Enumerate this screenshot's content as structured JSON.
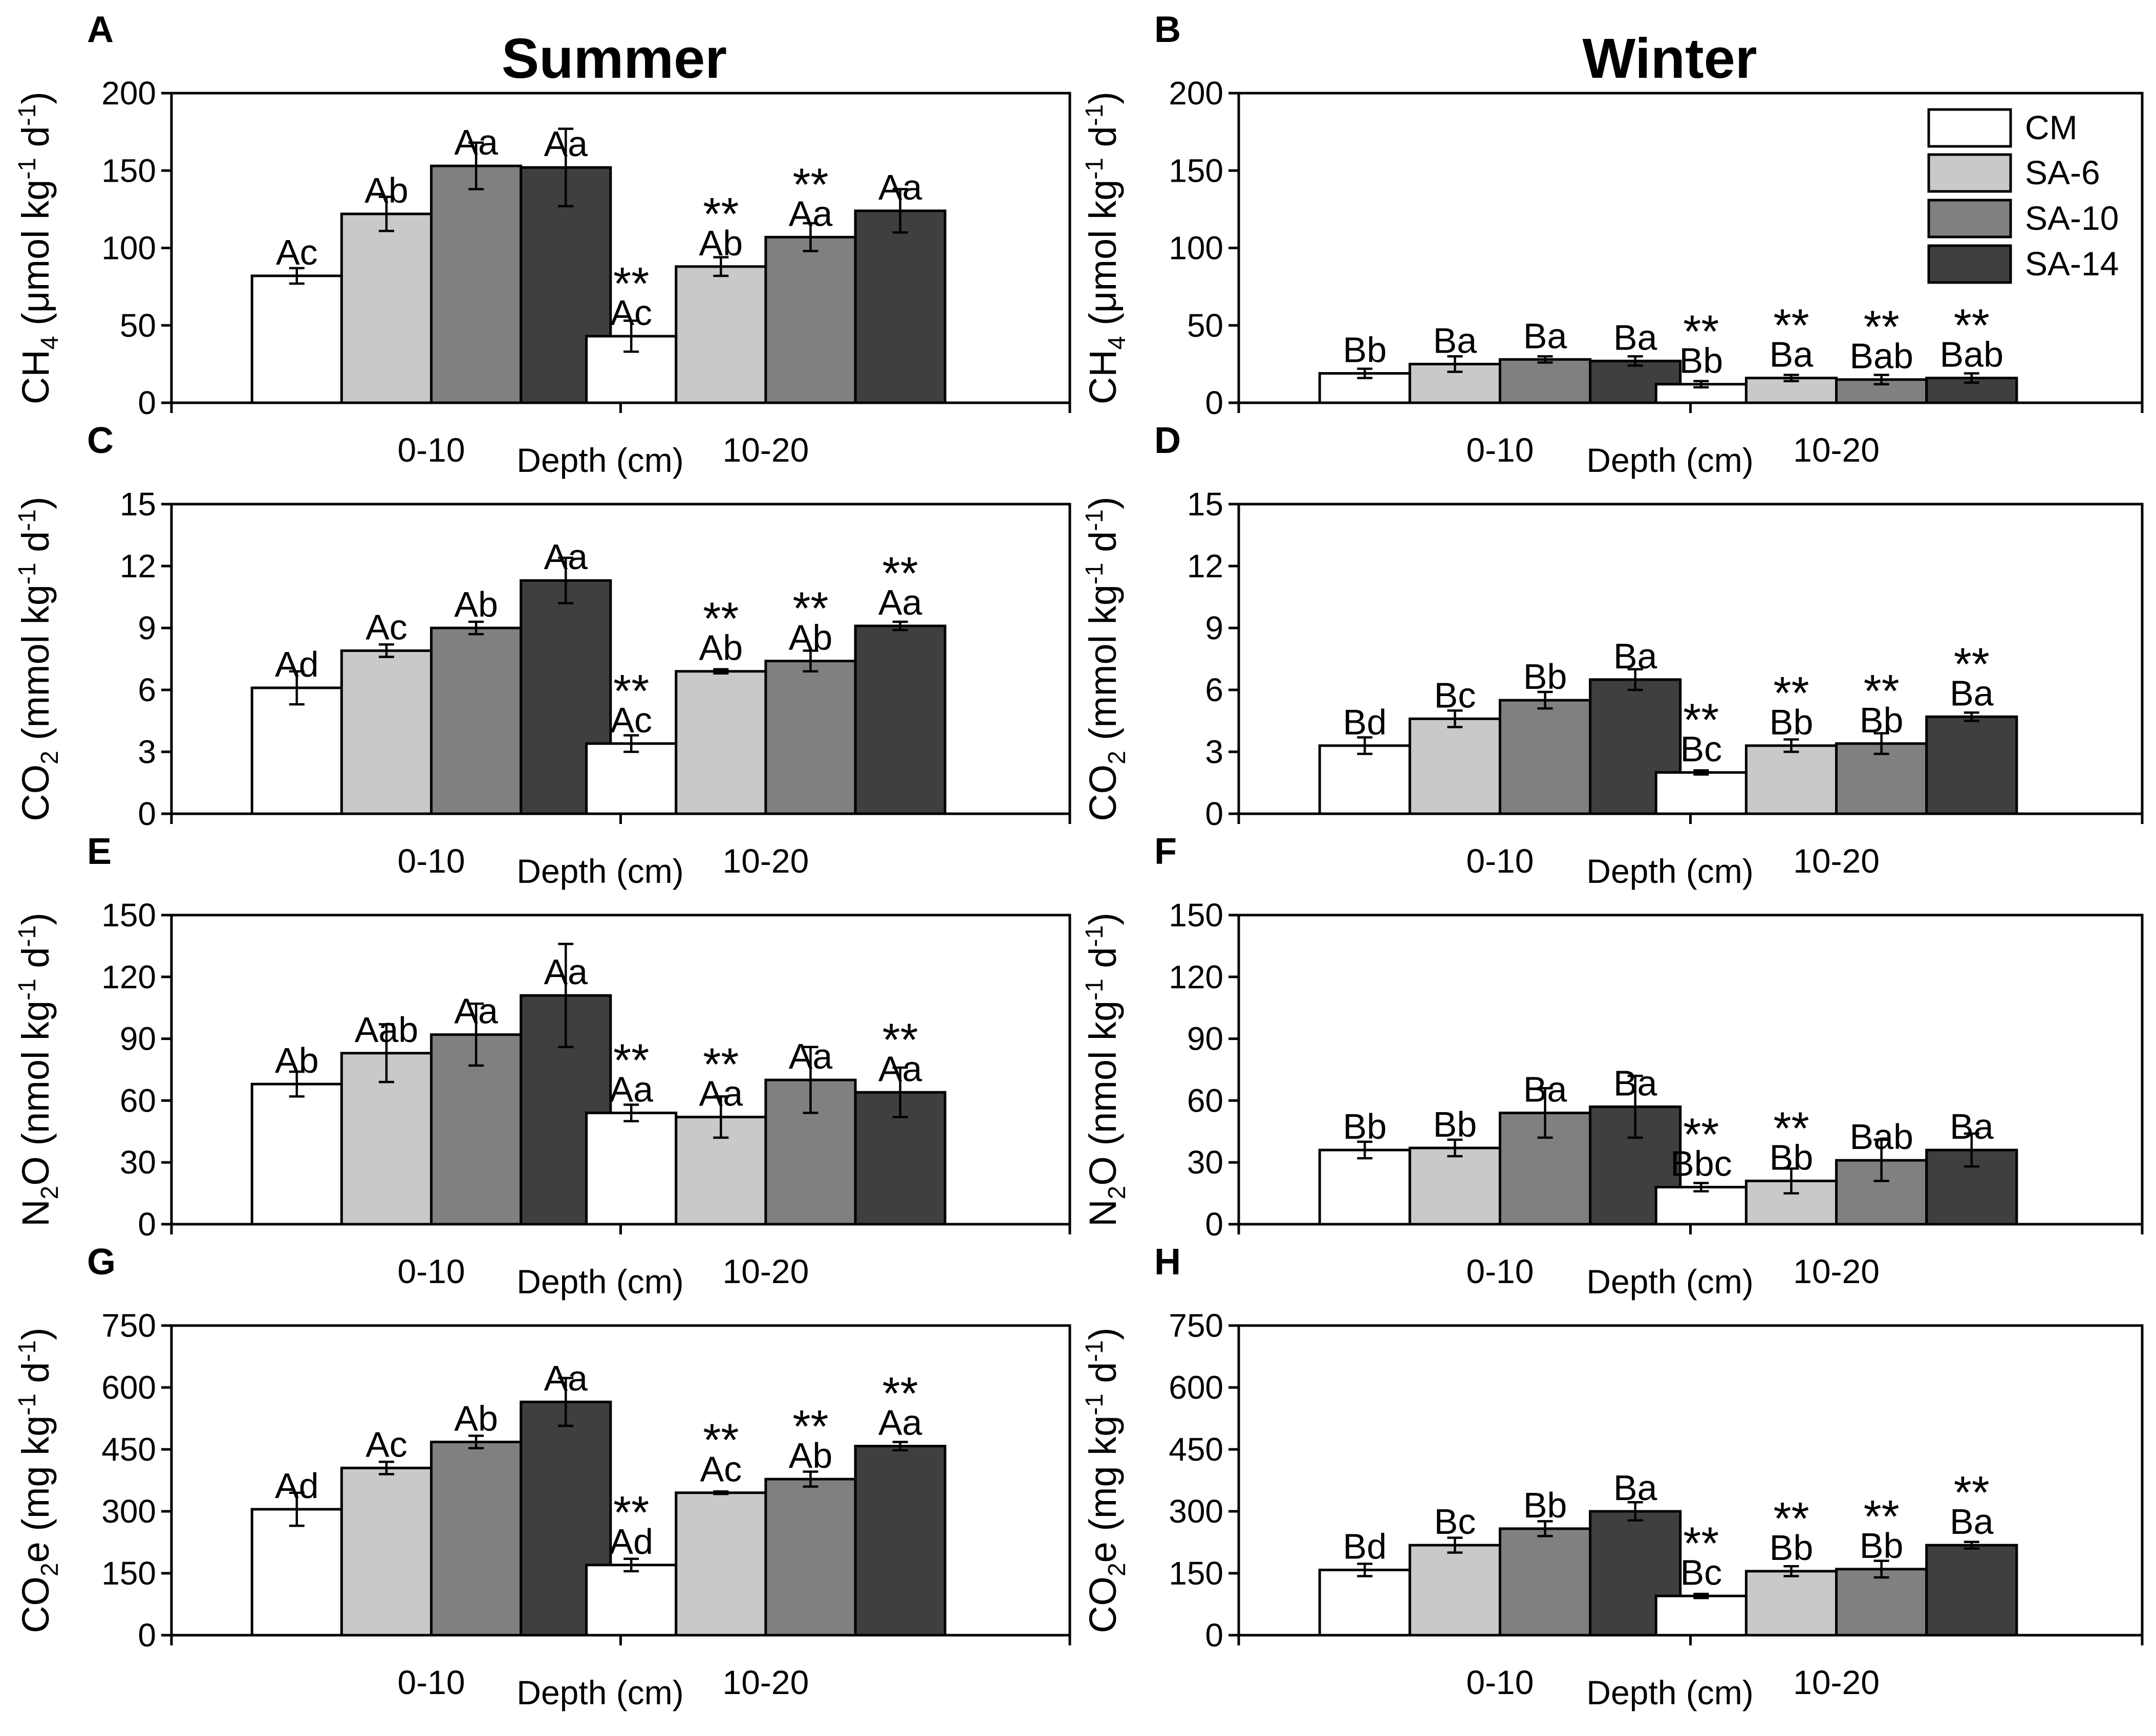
{
  "colors": {
    "series": [
      "#ffffff",
      "#c9c9c9",
      "#808080",
      "#3f3f3f"
    ]
  },
  "column_titles": [
    "Summer",
    "Winter"
  ],
  "legend": {
    "entries": [
      "CM",
      "SA-6",
      "SA-10",
      "SA-14"
    ]
  },
  "chart_data": [
    {
      "type": "bar",
      "panel": "A",
      "season": "Summer",
      "categories": [
        "0-10",
        "10-20"
      ],
      "xlabel": "Depth (cm)",
      "ylabel": {
        "pre": "CH",
        "sub": "4",
        "mid": " (μmol kg",
        "sup1": "-1",
        "gap": " d",
        "sup2": "-1",
        "post": ")"
      },
      "ylim": [
        0,
        200
      ],
      "yticks": [
        0,
        50,
        100,
        150,
        200
      ],
      "series": [
        {
          "name": "CM",
          "values": [
            82,
            43
          ],
          "errors": [
            5,
            10
          ],
          "labels": [
            "Ac",
            "Ac"
          ],
          "stars": [
            "",
            "**"
          ]
        },
        {
          "name": "SA-6",
          "values": [
            122,
            88
          ],
          "errors": [
            11,
            6
          ],
          "labels": [
            "Ab",
            "Ab"
          ],
          "stars": [
            "",
            "**"
          ]
        },
        {
          "name": "SA-10",
          "values": [
            153,
            107
          ],
          "errors": [
            15,
            9
          ],
          "labels": [
            "Aa",
            "Aa"
          ],
          "stars": [
            "",
            "**"
          ]
        },
        {
          "name": "SA-14",
          "values": [
            152,
            124
          ],
          "errors": [
            25,
            14
          ],
          "labels": [
            "Aa",
            "Aa"
          ],
          "stars": [
            "",
            ""
          ]
        }
      ]
    },
    {
      "type": "bar",
      "panel": "B",
      "season": "Winter",
      "categories": [
        "0-10",
        "10-20"
      ],
      "xlabel": "Depth (cm)",
      "ylabel": {
        "pre": "CH",
        "sub": "4",
        "mid": " (μmol kg",
        "sup1": "-1",
        "gap": " d",
        "sup2": "-1",
        "post": ")"
      },
      "ylim": [
        0,
        200
      ],
      "yticks": [
        0,
        50,
        100,
        150,
        200
      ],
      "series": [
        {
          "name": "CM",
          "values": [
            19,
            12
          ],
          "errors": [
            3,
            2
          ],
          "labels": [
            "Bb",
            "Bb"
          ],
          "stars": [
            "",
            "**"
          ]
        },
        {
          "name": "SA-6",
          "values": [
            25,
            16
          ],
          "errors": [
            5,
            2
          ],
          "labels": [
            "Ba",
            "Ba"
          ],
          "stars": [
            "",
            "**"
          ]
        },
        {
          "name": "SA-10",
          "values": [
            28,
            15
          ],
          "errors": [
            2,
            3
          ],
          "labels": [
            "Ba",
            "Bab"
          ],
          "stars": [
            "",
            "**"
          ]
        },
        {
          "name": "SA-14",
          "values": [
            27,
            16
          ],
          "errors": [
            3,
            3
          ],
          "labels": [
            "Ba",
            "Bab"
          ],
          "stars": [
            "",
            "**"
          ]
        }
      ]
    },
    {
      "type": "bar",
      "panel": "C",
      "season": "Summer",
      "categories": [
        "0-10",
        "10-20"
      ],
      "xlabel": "Depth (cm)",
      "ylabel": {
        "pre": "CO",
        "sub": "2",
        "mid": " (mmol kg",
        "sup1": "-1",
        "gap": " d",
        "sup2": "-1",
        "post": ")"
      },
      "ylim": [
        0,
        15
      ],
      "yticks": [
        0,
        3,
        6,
        9,
        12,
        15
      ],
      "series": [
        {
          "name": "CM",
          "values": [
            6.1,
            3.4
          ],
          "errors": [
            0.8,
            0.4
          ],
          "labels": [
            "Ad",
            "Ac"
          ],
          "stars": [
            "",
            "**"
          ]
        },
        {
          "name": "SA-6",
          "values": [
            7.9,
            6.9
          ],
          "errors": [
            0.3,
            0.1
          ],
          "labels": [
            "Ac",
            "Ab"
          ],
          "stars": [
            "",
            "**"
          ]
        },
        {
          "name": "SA-10",
          "values": [
            9.0,
            7.4
          ],
          "errors": [
            0.3,
            0.5
          ],
          "labels": [
            "Ab",
            "Ab"
          ],
          "stars": [
            "",
            "**"
          ]
        },
        {
          "name": "SA-14",
          "values": [
            11.3,
            9.1
          ],
          "errors": [
            1.1,
            0.2
          ],
          "labels": [
            "Aa",
            "Aa"
          ],
          "stars": [
            "",
            "**"
          ]
        }
      ]
    },
    {
      "type": "bar",
      "panel": "D",
      "season": "Winter",
      "categories": [
        "0-10",
        "10-20"
      ],
      "xlabel": "Depth (cm)",
      "ylabel": {
        "pre": "CO",
        "sub": "2",
        "mid": " (mmol kg",
        "sup1": "-1",
        "gap": " d",
        "sup2": "-1",
        "post": ")"
      },
      "ylim": [
        0,
        15
      ],
      "yticks": [
        0,
        3,
        6,
        9,
        12,
        15
      ],
      "series": [
        {
          "name": "CM",
          "values": [
            3.3,
            2.0
          ],
          "errors": [
            0.4,
            0.1
          ],
          "labels": [
            "Bd",
            "Bc"
          ],
          "stars": [
            "",
            "**"
          ]
        },
        {
          "name": "SA-6",
          "values": [
            4.6,
            3.3
          ],
          "errors": [
            0.4,
            0.3
          ],
          "labels": [
            "Bc",
            "Bb"
          ],
          "stars": [
            "",
            "**"
          ]
        },
        {
          "name": "SA-10",
          "values": [
            5.5,
            3.4
          ],
          "errors": [
            0.4,
            0.5
          ],
          "labels": [
            "Bb",
            "Bb"
          ],
          "stars": [
            "",
            "**"
          ]
        },
        {
          "name": "SA-14",
          "values": [
            6.5,
            4.7
          ],
          "errors": [
            0.5,
            0.2
          ],
          "labels": [
            "Ba",
            "Ba"
          ],
          "stars": [
            "",
            "**"
          ]
        }
      ]
    },
    {
      "type": "bar",
      "panel": "E",
      "season": "Summer",
      "categories": [
        "0-10",
        "10-20"
      ],
      "xlabel": "Depth (cm)",
      "ylabel": {
        "pre": "N",
        "sub": "2",
        "mid": "O (nmol kg",
        "sup1": "-1",
        "gap": " d",
        "sup2": "-1",
        "post": ")"
      },
      "ylim": [
        0,
        150
      ],
      "yticks": [
        0,
        30,
        60,
        90,
        120,
        150
      ],
      "series": [
        {
          "name": "CM",
          "values": [
            68,
            54
          ],
          "errors": [
            6,
            4
          ],
          "labels": [
            "Ab",
            "Aa"
          ],
          "stars": [
            "",
            "**"
          ]
        },
        {
          "name": "SA-6",
          "values": [
            83,
            52
          ],
          "errors": [
            14,
            10
          ],
          "labels": [
            "Aab",
            "Aa"
          ],
          "stars": [
            "",
            "**"
          ]
        },
        {
          "name": "SA-10",
          "values": [
            92,
            70
          ],
          "errors": [
            15,
            16
          ],
          "labels": [
            "Aa",
            "Aa"
          ],
          "stars": [
            "",
            ""
          ]
        },
        {
          "name": "SA-14",
          "values": [
            111,
            64
          ],
          "errors": [
            25,
            12
          ],
          "labels": [
            "Aa",
            "Aa"
          ],
          "stars": [
            "",
            "**"
          ]
        }
      ]
    },
    {
      "type": "bar",
      "panel": "F",
      "season": "Winter",
      "categories": [
        "0-10",
        "10-20"
      ],
      "xlabel": "Depth (cm)",
      "ylabel": {
        "pre": "N",
        "sub": "2",
        "mid": "O (nmol kg",
        "sup1": "-1",
        "gap": " d",
        "sup2": "-1",
        "post": ")"
      },
      "ylim": [
        0,
        150
      ],
      "yticks": [
        0,
        30,
        60,
        90,
        120,
        150
      ],
      "series": [
        {
          "name": "CM",
          "values": [
            36,
            18
          ],
          "errors": [
            4,
            2
          ],
          "labels": [
            "Bb",
            "Bbc"
          ],
          "stars": [
            "",
            "**"
          ]
        },
        {
          "name": "SA-6",
          "values": [
            37,
            21
          ],
          "errors": [
            4,
            6
          ],
          "labels": [
            "Bb",
            "Bb"
          ],
          "stars": [
            "",
            "**"
          ]
        },
        {
          "name": "SA-10",
          "values": [
            54,
            31
          ],
          "errors": [
            12,
            10
          ],
          "labels": [
            "Ba",
            "Bab"
          ],
          "stars": [
            "",
            ""
          ]
        },
        {
          "name": "SA-14",
          "values": [
            57,
            36
          ],
          "errors": [
            15,
            8
          ],
          "labels": [
            "Ba",
            "Ba"
          ],
          "stars": [
            "",
            ""
          ]
        }
      ]
    },
    {
      "type": "bar",
      "panel": "G",
      "season": "Summer",
      "categories": [
        "0-10",
        "10-20"
      ],
      "xlabel": "Depth (cm)",
      "ylabel": {
        "pre": "CO",
        "sub": "2",
        "mid": "e (mg kg",
        "sup1": "-1",
        "gap": " d",
        "sup2": "-1",
        "post": ")"
      },
      "ylim": [
        0,
        750
      ],
      "yticks": [
        0,
        150,
        300,
        450,
        600,
        750
      ],
      "series": [
        {
          "name": "CM",
          "values": [
            305,
            170
          ],
          "errors": [
            40,
            15
          ],
          "labels": [
            "Ad",
            "Ad"
          ],
          "stars": [
            "",
            "**"
          ]
        },
        {
          "name": "SA-6",
          "values": [
            405,
            345
          ],
          "errors": [
            15,
            3
          ],
          "labels": [
            "Ac",
            "Ac"
          ],
          "stars": [
            "",
            "**"
          ]
        },
        {
          "name": "SA-10",
          "values": [
            468,
            378
          ],
          "errors": [
            15,
            18
          ],
          "labels": [
            "Ab",
            "Ab"
          ],
          "stars": [
            "",
            "**"
          ]
        },
        {
          "name": "SA-14",
          "values": [
            565,
            458
          ],
          "errors": [
            58,
            10
          ],
          "labels": [
            "Aa",
            "Aa"
          ],
          "stars": [
            "",
            "**"
          ]
        }
      ]
    },
    {
      "type": "bar",
      "panel": "H",
      "season": "Winter",
      "categories": [
        "0-10",
        "10-20"
      ],
      "xlabel": "Depth (cm)",
      "ylabel": {
        "pre": "CO",
        "sub": "2",
        "mid": "e (mg kg",
        "sup1": "-1",
        "gap": " d",
        "sup2": "-1",
        "post": ")"
      },
      "ylim": [
        0,
        750
      ],
      "yticks": [
        0,
        150,
        300,
        450,
        600,
        750
      ],
      "series": [
        {
          "name": "CM",
          "values": [
            158,
            95
          ],
          "errors": [
            15,
            5
          ],
          "labels": [
            "Bd",
            "Bc"
          ],
          "stars": [
            "",
            "**"
          ]
        },
        {
          "name": "SA-6",
          "values": [
            218,
            155
          ],
          "errors": [
            18,
            12
          ],
          "labels": [
            "Bc",
            "Bb"
          ],
          "stars": [
            "",
            "**"
          ]
        },
        {
          "name": "SA-10",
          "values": [
            258,
            160
          ],
          "errors": [
            18,
            20
          ],
          "labels": [
            "Bb",
            "Bb"
          ],
          "stars": [
            "",
            "**"
          ]
        },
        {
          "name": "SA-14",
          "values": [
            300,
            218
          ],
          "errors": [
            22,
            8
          ],
          "labels": [
            "Ba",
            "Ba"
          ],
          "stars": [
            "",
            "**"
          ]
        }
      ]
    }
  ]
}
